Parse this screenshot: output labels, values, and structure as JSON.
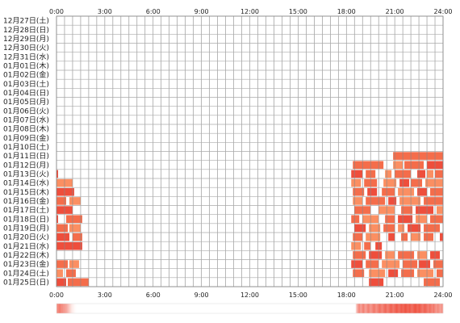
{
  "chart_data": {
    "type": "heatmap",
    "x_ticks": [
      "0:00",
      "3:00",
      "6:00",
      "9:00",
      "12:00",
      "15:00",
      "18:00",
      "21:00",
      "24:00"
    ],
    "x_range": [
      0,
      24
    ],
    "rows": [
      "12月27日(土)",
      "12月28日(日)",
      "12月29日(月)",
      "12月30日(火)",
      "12月31日(水)",
      "01月01日(木)",
      "01月02日(金)",
      "01月03日(土)",
      "01月04日(日)",
      "01月05日(月)",
      "01月06日(火)",
      "01月07日(水)",
      "01月08日(木)",
      "01月09日(金)",
      "01月10日(土)",
      "01月11日(日)",
      "01月12日(月)",
      "01月13日(火)",
      "01月14日(水)",
      "01月15日(木)",
      "01月16日(金)",
      "01月17日(土)",
      "01月18日(日)",
      "01月19日(月)",
      "01月20日(火)",
      "01月21日(水)",
      "01月22日(木)",
      "01月23日(金)",
      "01月24日(土)",
      "01月25日(日)"
    ],
    "colors": {
      "grid": "#888888",
      "row_line": "#aaaaaa",
      "dark": "#ee4e3c",
      "mid": "#f46d4b",
      "light": "#fb8f62",
      "summary_strip": "#ee4e3c"
    },
    "activity": [
      [],
      [],
      [],
      [],
      [],
      [],
      [],
      [],
      [],
      [],
      [],
      [],
      [],
      [],
      [],
      [
        [
          20.9,
          24.0,
          "mid"
        ]
      ],
      [
        [
          18.4,
          20.3,
          "mid"
        ],
        [
          20.9,
          21.5,
          "light"
        ],
        [
          21.6,
          22.8,
          "mid"
        ],
        [
          23.0,
          24.0,
          "dark"
        ]
      ],
      [
        [
          0.0,
          0.1,
          "dark"
        ],
        [
          18.3,
          19.0,
          "dark"
        ],
        [
          19.2,
          19.8,
          "mid"
        ],
        [
          20.4,
          20.8,
          "light"
        ],
        [
          21.0,
          22.0,
          "mid"
        ],
        [
          22.4,
          22.9,
          "dark"
        ],
        [
          23.0,
          23.4,
          "light"
        ],
        [
          23.5,
          24.0,
          "mid"
        ]
      ],
      [
        [
          0.0,
          1.0,
          "light"
        ],
        [
          18.3,
          18.9,
          "light"
        ],
        [
          19.1,
          19.9,
          "mid"
        ],
        [
          20.3,
          21.1,
          "light"
        ],
        [
          21.3,
          21.9,
          "dark"
        ],
        [
          22.0,
          22.7,
          "mid"
        ],
        [
          22.9,
          24.0,
          "light"
        ]
      ],
      [
        [
          0.0,
          1.1,
          "dark"
        ],
        [
          18.4,
          19.1,
          "mid"
        ],
        [
          19.3,
          19.9,
          "dark"
        ],
        [
          20.2,
          21.0,
          "mid"
        ],
        [
          21.2,
          22.2,
          "light"
        ],
        [
          22.4,
          23.0,
          "dark"
        ],
        [
          23.2,
          24.0,
          "mid"
        ]
      ],
      [
        [
          0.0,
          0.6,
          "mid"
        ],
        [
          0.8,
          1.5,
          "light"
        ],
        [
          18.4,
          19.0,
          "light"
        ],
        [
          19.2,
          20.4,
          "mid"
        ],
        [
          20.6,
          21.1,
          "dark"
        ],
        [
          21.3,
          22.6,
          "light"
        ],
        [
          22.8,
          24.0,
          "mid"
        ]
      ],
      [
        [
          0.0,
          1.0,
          "dark"
        ],
        [
          18.5,
          19.5,
          "mid"
        ],
        [
          20.0,
          21.0,
          "light"
        ],
        [
          21.4,
          22.1,
          "mid"
        ],
        [
          22.3,
          23.4,
          "dark"
        ],
        [
          23.6,
          24.0,
          "light"
        ]
      ],
      [
        [
          0.0,
          0.1,
          "dark"
        ],
        [
          0.6,
          1.6,
          "mid"
        ],
        [
          18.3,
          18.8,
          "mid"
        ],
        [
          19.0,
          20.0,
          "light"
        ],
        [
          20.4,
          21.0,
          "mid"
        ],
        [
          21.2,
          22.1,
          "dark"
        ],
        [
          22.3,
          23.0,
          "light"
        ],
        [
          23.2,
          24.0,
          "mid"
        ]
      ],
      [
        [
          0.0,
          0.7,
          "mid"
        ],
        [
          0.8,
          1.5,
          "light"
        ],
        [
          18.5,
          19.2,
          "dark"
        ],
        [
          19.4,
          20.1,
          "light"
        ],
        [
          20.3,
          21.0,
          "mid"
        ],
        [
          21.2,
          21.6,
          "light"
        ],
        [
          21.8,
          22.6,
          "dark"
        ],
        [
          22.8,
          23.8,
          "mid"
        ]
      ],
      [
        [
          0.0,
          0.8,
          "dark"
        ],
        [
          1.0,
          1.6,
          "mid"
        ],
        [
          18.4,
          19.0,
          "mid"
        ],
        [
          19.2,
          20.1,
          "light"
        ],
        [
          20.6,
          21.0,
          "dark"
        ],
        [
          21.4,
          21.8,
          "mid"
        ],
        [
          22.0,
          22.6,
          "light"
        ],
        [
          22.8,
          23.4,
          "mid"
        ],
        [
          23.8,
          24.0,
          "dark"
        ]
      ],
      [
        [
          0.0,
          1.6,
          "dark"
        ],
        [
          18.3,
          18.9,
          "light"
        ],
        [
          19.1,
          19.5,
          "mid"
        ],
        [
          19.8,
          20.2,
          "dark"
        ]
      ],
      [
        [
          18.4,
          19.2,
          "mid"
        ],
        [
          19.4,
          20.2,
          "dark"
        ],
        [
          20.4,
          21.0,
          "light"
        ],
        [
          21.2,
          22.2,
          "mid"
        ],
        [
          22.4,
          23.0,
          "light"
        ],
        [
          23.2,
          23.8,
          "dark"
        ]
      ],
      [
        [
          0.0,
          0.7,
          "mid"
        ],
        [
          0.8,
          1.4,
          "light"
        ],
        [
          18.3,
          19.0,
          "dark"
        ],
        [
          19.2,
          20.0,
          "mid"
        ],
        [
          20.2,
          21.3,
          "light"
        ],
        [
          21.5,
          22.4,
          "mid"
        ],
        [
          22.5,
          23.2,
          "dark"
        ],
        [
          23.4,
          24.0,
          "mid"
        ]
      ],
      [
        [
          0.0,
          0.4,
          "light"
        ],
        [
          0.6,
          1.2,
          "mid"
        ],
        [
          18.4,
          19.1,
          "mid"
        ],
        [
          19.4,
          20.4,
          "light"
        ],
        [
          20.6,
          21.2,
          "dark"
        ],
        [
          21.4,
          22.2,
          "mid"
        ],
        [
          22.4,
          23.4,
          "light"
        ],
        [
          23.6,
          24.0,
          "mid"
        ]
      ],
      [
        [
          0.0,
          0.6,
          "dark"
        ],
        [
          0.7,
          2.0,
          "mid"
        ],
        [
          19.4,
          20.3,
          "dark"
        ],
        [
          22.8,
          23.8,
          "mid"
        ]
      ]
    ],
    "summary_strip": [
      0.55,
      0.6,
      0.6,
      0.65,
      0.7,
      0.55,
      0.6,
      0.55,
      0.5,
      0.5,
      0.45,
      0.45,
      0.4,
      0.35,
      0.3,
      0.25,
      0.2,
      0.15,
      0.1,
      0.08,
      0.06,
      0.04,
      0.02,
      0.01,
      0.0,
      0.0,
      0.0,
      0.0,
      0.0,
      0.0,
      0.0,
      0.0,
      0.0,
      0.0,
      0.0,
      0.0,
      0.0,
      0.0,
      0.0,
      0.0,
      0.0,
      0.0,
      0.0,
      0.0,
      0.0,
      0.0,
      0.0,
      0.0,
      0.0,
      0.0,
      0.0,
      0.0,
      0.0,
      0.0,
      0.0,
      0.0,
      0.0,
      0.0,
      0.0,
      0.0,
      0.0,
      0.0,
      0.0,
      0.0,
      0.0,
      0.0,
      0.0,
      0.0,
      0.0,
      0.0,
      0.0,
      0.0,
      0.0,
      0.0,
      0.0,
      0.0,
      0.0,
      0.0,
      0.0,
      0.0,
      0.0,
      0.0,
      0.0,
      0.0,
      0.0,
      0.0,
      0.0,
      0.0,
      0.0,
      0.0,
      0.0,
      0.0,
      0.0,
      0.0,
      0.0,
      0.0,
      0.0,
      0.0,
      0.0,
      0.0,
      0.0,
      0.0,
      0.0,
      0.0,
      0.0,
      0.0,
      0.0,
      0.0,
      0.0,
      0.0,
      0.0,
      0.0,
      0.0,
      0.0,
      0.0,
      0.0,
      0.0,
      0.0,
      0.0,
      0.0,
      0.0,
      0.0,
      0.0,
      0.0,
      0.0,
      0.0,
      0.0,
      0.0,
      0.0,
      0.0,
      0.0,
      0.0,
      0.0,
      0.0,
      0.0,
      0.0,
      0.0,
      0.0,
      0.0,
      0.0,
      0.0,
      0.0,
      0.0,
      0.0,
      0.0,
      0.0,
      0.0,
      0.0,
      0.0,
      0.0,
      0.0,
      0.0,
      0.0,
      0.0,
      0.0,
      0.0,
      0.0,
      0.0,
      0.0,
      0.0,
      0.0,
      0.0,
      0.0,
      0.0,
      0.0,
      0.0,
      0.0,
      0.0,
      0.0,
      0.0,
      0.0,
      0.0,
      0.0,
      0.0,
      0.0,
      0.0,
      0.0,
      0.0,
      0.0,
      0.0,
      0.0,
      0.0,
      0.0,
      0.0,
      0.0,
      0.0,
      0.0,
      0.0,
      0.0,
      0.0,
      0.0,
      0.0,
      0.0,
      0.0,
      0.0,
      0.0,
      0.0,
      0.0,
      0.0,
      0.0,
      0.0,
      0.0,
      0.0,
      0.0,
      0.0,
      0.0,
      0.0,
      0.0,
      0.0,
      0.0,
      0.0,
      0.0,
      0.0,
      0.0,
      0.0,
      0.0,
      0.0,
      0.0,
      0.0,
      0.0,
      0.0,
      0.0,
      0.0,
      0.0,
      0.0,
      0.0,
      0.0,
      0.0,
      0.0,
      0.0,
      0.0,
      0.0,
      0.0,
      0.0,
      0.0,
      0.0,
      0.0,
      0.0,
      0.0,
      0.0,
      0.0,
      0.0,
      0.0,
      0.0,
      0.0,
      0.0,
      0.0,
      0.0,
      0.0,
      0.0,
      0.0,
      0.0,
      0.0,
      0.0,
      0.0,
      0.0,
      0.0,
      0.0,
      0.0,
      0.0,
      0.0,
      0.0,
      0.0,
      0.0,
      0.0,
      0.0,
      0.0,
      0.0,
      0.0,
      0.0,
      0.0,
      0.0,
      0.0,
      0.0,
      0.0,
      0.0,
      0.0,
      0.0,
      0.0,
      0.0,
      0.0,
      0.0,
      0.0,
      0.0,
      0.0,
      0.0,
      0.0,
      0.0,
      0.0,
      0.0,
      0.0,
      0.0,
      0.0,
      0.0,
      0.0,
      0.0,
      0.0,
      0.0,
      0.0,
      0.0,
      0.0,
      0.0,
      0.0,
      0.0,
      0.0,
      0.0,
      0.0,
      0.0,
      0.0,
      0.0,
      0.0,
      0.0,
      0.0,
      0.0,
      0.0,
      0.0,
      0.0,
      0.0,
      0.0,
      0.0,
      0.0,
      0.0,
      0.0,
      0.0,
      0.0,
      0.0,
      0.0,
      0.0,
      0.0,
      0.0,
      0.0,
      0.0,
      0.0,
      0.0,
      0.0,
      0.0,
      0.0,
      0.0,
      0.0,
      0.0,
      0.0,
      0.0,
      0.0,
      0.0,
      0.0,
      0.0,
      0.0,
      0.0,
      0.0,
      0.0,
      0.0,
      0.0,
      0.0,
      0.0,
      0.0,
      0.0,
      0.0,
      0.0,
      0.0,
      0.0,
      0.0,
      0.0,
      0.0,
      0.0,
      0.0,
      0.0,
      0.0,
      0.0,
      0.0,
      0.0,
      0.2,
      0.35,
      0.45,
      0.55,
      0.6,
      0.5,
      0.45,
      0.55,
      0.6,
      0.65,
      0.55,
      0.5,
      0.45,
      0.55,
      0.6,
      0.65,
      0.6,
      0.55,
      0.5,
      0.55,
      0.6,
      0.65,
      0.7,
      0.65,
      0.6,
      0.55,
      0.6,
      0.65,
      0.7,
      0.75,
      0.7,
      0.65,
      0.6,
      0.65,
      0.7,
      0.75,
      0.8,
      0.75,
      0.7,
      0.65,
      0.7,
      0.75,
      0.8,
      0.85,
      0.8,
      0.75,
      0.7,
      0.75,
      0.8,
      0.85,
      0.9,
      0.85,
      0.8,
      0.75,
      0.8,
      0.85,
      0.9,
      0.85,
      0.8,
      0.85,
      0.9,
      0.95,
      0.9,
      0.85,
      0.8,
      0.85,
      0.9,
      0.85,
      0.8,
      0.75,
      0.8,
      0.85,
      0.9,
      0.95,
      0.9,
      0.85,
      0.8,
      0.85,
      0.9,
      0.85,
      0.8,
      0.75,
      0.7,
      0.75,
      0.8,
      0.85,
      0.8,
      0.75,
      0.7,
      0.65,
      0.7,
      0.75,
      0.7,
      0.65,
      0.6,
      0.65,
      0.7,
      0.6,
      0.55,
      0.5,
      0.55,
      0.6,
      0.55,
      0.5,
      0.45,
      0.5,
      0.55,
      0.45
    ]
  }
}
